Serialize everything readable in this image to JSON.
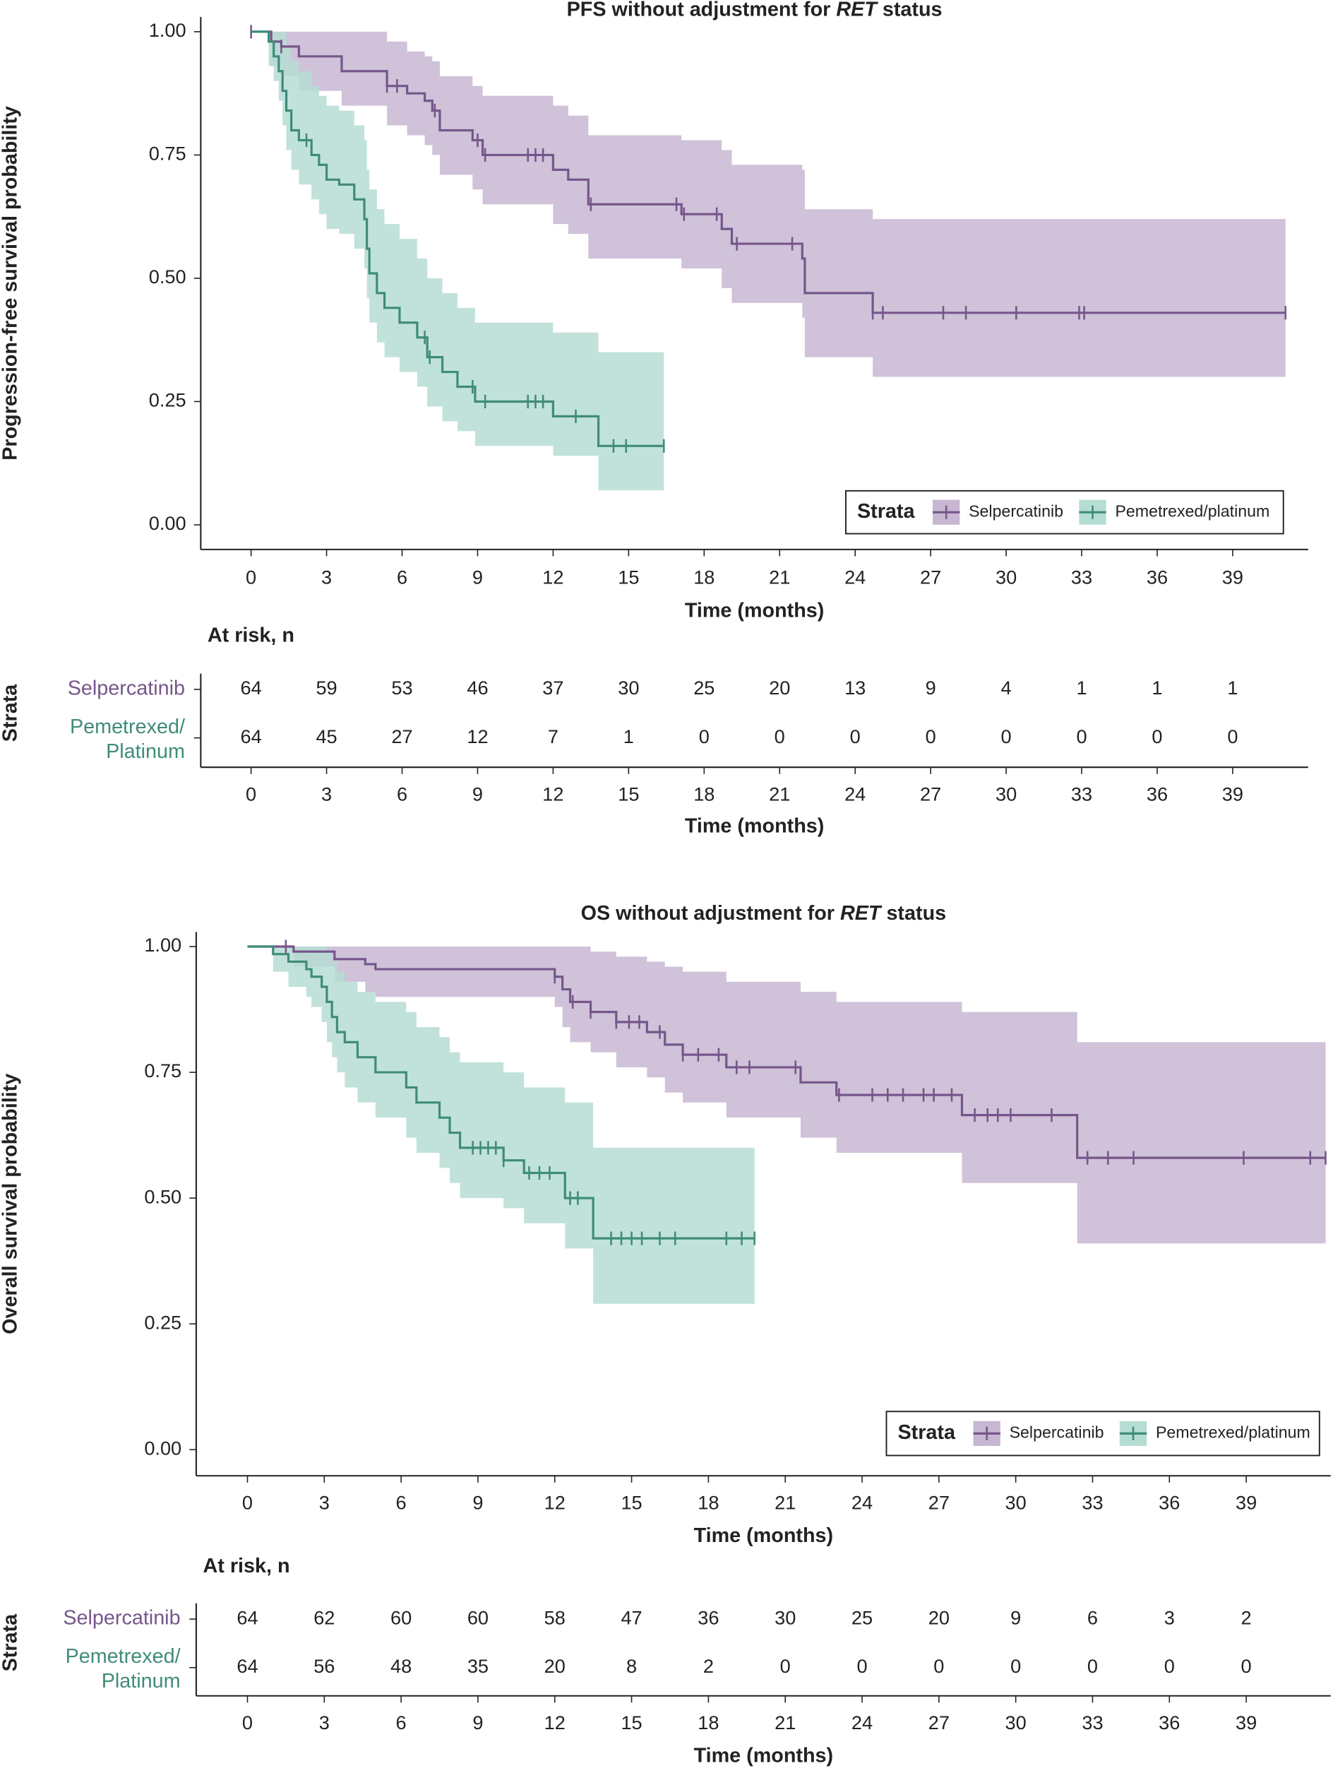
{
  "chart_data": [
    {
      "type": "step",
      "title": [
        "PFS without adjustment for ",
        "RET",
        " status"
      ],
      "ylabel": "Progression-free survival probability",
      "xlabel": "Time (months)",
      "xlim": [
        -2,
        42
      ],
      "ylim": [
        -0.05,
        1.03
      ],
      "xticks": [
        0,
        3,
        6,
        9,
        12,
        15,
        18,
        21,
        24,
        27,
        30,
        33,
        36,
        39
      ],
      "yticks": [
        {
          "value": 0,
          "label": "0.00"
        },
        {
          "value": 0.25,
          "label": "0.25"
        },
        {
          "value": 0.5,
          "label": "0.50"
        },
        {
          "value": 0.75,
          "label": "0.75"
        },
        {
          "value": 1,
          "label": "1.00"
        }
      ],
      "legend": {
        "title": "Strata",
        "position": "lower right"
      },
      "series": [
        {
          "name": "Selpercatinib",
          "color": "#76568a",
          "band_color": "#c7b7d2",
          "x": [
            0,
            0.8,
            1.2,
            1.9,
            3.6,
            5.4,
            6.2,
            6.9,
            7.2,
            7.5,
            8.8,
            9.2,
            12.0,
            12.6,
            13.4,
            17.1,
            18.7,
            19.1,
            21.9,
            22.0,
            24.7,
            41.1
          ],
          "values": [
            1.0,
            0.98,
            0.97,
            0.95,
            0.92,
            0.89,
            0.875,
            0.86,
            0.84,
            0.8,
            0.78,
            0.75,
            0.72,
            0.7,
            0.65,
            0.63,
            0.6,
            0.57,
            0.54,
            0.47,
            0.43,
            0.43
          ],
          "upper": [
            1.0,
            1.0,
            1.0,
            1.0,
            1.0,
            0.98,
            0.96,
            0.95,
            0.94,
            0.91,
            0.89,
            0.87,
            0.85,
            0.83,
            0.79,
            0.78,
            0.76,
            0.73,
            0.72,
            0.64,
            0.62,
            0.62
          ],
          "lower": [
            1.0,
            0.93,
            0.91,
            0.88,
            0.85,
            0.81,
            0.79,
            0.77,
            0.75,
            0.71,
            0.68,
            0.65,
            0.61,
            0.59,
            0.54,
            0.52,
            0.48,
            0.45,
            0.42,
            0.34,
            0.3,
            0.3
          ],
          "censor_x": [
            0,
            1.2,
            5.4,
            5.8,
            7.3,
            9.0,
            9.3,
            11.0,
            11.3,
            11.6,
            13.5,
            16.9,
            17.2,
            18.5,
            19.3,
            21.5,
            24.7,
            25.1,
            27.5,
            28.4,
            30.4,
            32.9,
            33.1,
            41.1
          ],
          "censor_values": [
            1,
            0.97,
            0.89,
            0.89,
            0.84,
            0.78,
            0.75,
            0.75,
            0.75,
            0.75,
            0.65,
            0.65,
            0.63,
            0.63,
            0.57,
            0.57,
            0.43,
            0.43,
            0.43,
            0.43,
            0.43,
            0.43,
            0.43,
            0.43
          ]
        },
        {
          "name": "Pemetrexed/platinum",
          "color": "#3f8c79",
          "band_color": "#b6ddd3",
          "x": [
            0,
            0.7,
            0.9,
            1.1,
            1.25,
            1.4,
            1.6,
            1.9,
            2.4,
            2.7,
            3.0,
            3.5,
            4.1,
            4.5,
            4.6,
            4.7,
            5.0,
            5.3,
            5.9,
            6.6,
            7.0,
            7.6,
            8.2,
            8.9,
            12.0,
            13.8,
            16.4
          ],
          "values": [
            1.0,
            0.98,
            0.95,
            0.92,
            0.88,
            0.84,
            0.8,
            0.78,
            0.75,
            0.73,
            0.7,
            0.69,
            0.66,
            0.62,
            0.56,
            0.51,
            0.47,
            0.44,
            0.41,
            0.38,
            0.34,
            0.31,
            0.28,
            0.25,
            0.22,
            0.16,
            0.16
          ],
          "upper": [
            1,
            1,
            1,
            1,
            1,
            0.97,
            0.94,
            0.92,
            0.89,
            0.87,
            0.85,
            0.84,
            0.81,
            0.78,
            0.72,
            0.68,
            0.64,
            0.61,
            0.58,
            0.54,
            0.5,
            0.47,
            0.44,
            0.41,
            0.39,
            0.35,
            0.35
          ],
          "lower": [
            1,
            0.93,
            0.9,
            0.86,
            0.81,
            0.76,
            0.72,
            0.69,
            0.66,
            0.63,
            0.6,
            0.59,
            0.56,
            0.52,
            0.46,
            0.41,
            0.37,
            0.34,
            0.31,
            0.28,
            0.24,
            0.21,
            0.19,
            0.16,
            0.14,
            0.07,
            0.07
          ],
          "censor_x": [
            2.2,
            6.9,
            7.1,
            8.8,
            9.3,
            11.0,
            11.3,
            11.6,
            12.9,
            14.4,
            14.9,
            16.4
          ],
          "censor_values": [
            0.78,
            0.38,
            0.34,
            0.28,
            0.25,
            0.25,
            0.25,
            0.25,
            0.22,
            0.16,
            0.16,
            0.16
          ]
        }
      ],
      "risk_table": {
        "title": "At risk, n",
        "ylabel": "Strata",
        "xlabel": "Time (months)",
        "xticks": [
          0,
          3,
          6,
          9,
          12,
          15,
          18,
          21,
          24,
          27,
          30,
          33,
          36,
          39
        ],
        "row_labels": [
          [
            "Selpercatinib"
          ],
          [
            "Pemetrexed/",
            "Platinum"
          ]
        ],
        "rows": [
          [
            64,
            59,
            53,
            46,
            37,
            30,
            25,
            20,
            13,
            9,
            4,
            1,
            1,
            1
          ],
          [
            64,
            45,
            27,
            12,
            7,
            1,
            0,
            0,
            0,
            0,
            0,
            0,
            0,
            0
          ]
        ]
      }
    },
    {
      "type": "step",
      "title": [
        "OS without adjustment for ",
        "RET",
        " status"
      ],
      "ylabel": "Overall survival probability",
      "xlabel": "Time (months)",
      "xlim": [
        -2,
        42.3
      ],
      "ylim": [
        -0.052,
        1.029
      ],
      "xticks": [
        0,
        3,
        6,
        9,
        12,
        15,
        18,
        21,
        24,
        27,
        30,
        33,
        36,
        39
      ],
      "yticks": [
        {
          "value": 0,
          "label": "0.00"
        },
        {
          "value": 0.25,
          "label": "0.25"
        },
        {
          "value": 0.5,
          "label": "0.50"
        },
        {
          "value": 0.75,
          "label": "0.75"
        },
        {
          "value": 1,
          "label": "1.00"
        }
      ],
      "legend": {
        "title": "Strata",
        "position": "lower right"
      },
      "series": [
        {
          "name": "Selpercatinib",
          "color": "#76568a",
          "band_color": "#c7b7d2",
          "x": [
            0,
            1.8,
            3.4,
            4.6,
            5.0,
            12.0,
            12.3,
            12.6,
            13.4,
            14.4,
            15.6,
            16.3,
            17.0,
            18.7,
            21.6,
            23.0,
            27.9,
            32.4,
            42.1
          ],
          "values": [
            1,
            0.99,
            0.975,
            0.965,
            0.955,
            0.94,
            0.915,
            0.89,
            0.87,
            0.85,
            0.83,
            0.805,
            0.785,
            0.76,
            0.73,
            0.705,
            0.665,
            0.58,
            0.58
          ],
          "upper": [
            1,
            1,
            1,
            1,
            1,
            1,
            1,
            1,
            0.99,
            0.98,
            0.97,
            0.96,
            0.95,
            0.93,
            0.91,
            0.89,
            0.87,
            0.81,
            0.81
          ],
          "lower": [
            1,
            0.96,
            0.93,
            0.91,
            0.9,
            0.88,
            0.84,
            0.81,
            0.79,
            0.76,
            0.74,
            0.71,
            0.69,
            0.66,
            0.62,
            0.59,
            0.53,
            0.41,
            0.41
          ],
          "censor_x": [
            1.5,
            12.0,
            12.7,
            13.4,
            14.4,
            14.9,
            15.3,
            16.1,
            17.0,
            17.6,
            18.4,
            19.1,
            19.6,
            21.4,
            23.1,
            24.4,
            25.0,
            25.6,
            26.4,
            26.8,
            27.5,
            28.4,
            28.9,
            29.3,
            29.8,
            31.4,
            32.8,
            33.6,
            34.6,
            38.9,
            41.5,
            42.1
          ],
          "censor_values": [
            1,
            0.94,
            0.89,
            0.87,
            0.85,
            0.85,
            0.85,
            0.83,
            0.785,
            0.785,
            0.785,
            0.76,
            0.76,
            0.76,
            0.705,
            0.705,
            0.705,
            0.705,
            0.705,
            0.705,
            0.705,
            0.665,
            0.665,
            0.665,
            0.665,
            0.665,
            0.58,
            0.58,
            0.58,
            0.58,
            0.58,
            0.58
          ]
        },
        {
          "name": "Pemetrexed/platinum",
          "color": "#3f8c79",
          "band_color": "#b6ddd3",
          "x": [
            0,
            1.0,
            1.6,
            2.3,
            2.5,
            2.9,
            3.1,
            3.3,
            3.5,
            3.8,
            4.3,
            5.0,
            6.2,
            6.6,
            7.5,
            7.9,
            8.3,
            10.0,
            10.8,
            12.4,
            13.5,
            19.8
          ],
          "values": [
            1,
            0.985,
            0.97,
            0.955,
            0.94,
            0.92,
            0.89,
            0.86,
            0.83,
            0.81,
            0.78,
            0.75,
            0.72,
            0.69,
            0.66,
            0.63,
            0.6,
            0.575,
            0.55,
            0.5,
            0.42,
            0.42
          ],
          "upper": [
            1,
            1,
            1,
            1,
            1,
            1,
            0.99,
            0.97,
            0.95,
            0.93,
            0.91,
            0.89,
            0.87,
            0.84,
            0.82,
            0.79,
            0.77,
            0.75,
            0.72,
            0.69,
            0.6,
            0.6
          ],
          "lower": [
            1,
            0.95,
            0.92,
            0.9,
            0.88,
            0.85,
            0.81,
            0.78,
            0.75,
            0.72,
            0.69,
            0.66,
            0.62,
            0.59,
            0.56,
            0.53,
            0.5,
            0.48,
            0.45,
            0.4,
            0.29,
            0.29
          ],
          "censor_x": [
            8.8,
            9.1,
            9.4,
            9.7,
            10.0,
            11.0,
            11.4,
            11.8,
            12.6,
            12.9,
            14.2,
            14.6,
            15.0,
            15.4,
            16.1,
            16.7,
            18.7,
            19.3,
            19.8
          ],
          "censor_values": [
            0.6,
            0.6,
            0.6,
            0.6,
            0.575,
            0.55,
            0.55,
            0.55,
            0.5,
            0.5,
            0.42,
            0.42,
            0.42,
            0.42,
            0.42,
            0.42,
            0.42,
            0.42,
            0.42
          ]
        }
      ],
      "risk_table": {
        "title": "At risk, n",
        "ylabel": "Strata",
        "xlabel": "Time (months)",
        "xticks": [
          0,
          3,
          6,
          9,
          12,
          15,
          18,
          21,
          24,
          27,
          30,
          33,
          36,
          39
        ],
        "row_labels": [
          [
            "Selpercatinib"
          ],
          [
            "Pemetrexed/",
            "Platinum"
          ]
        ],
        "rows": [
          [
            64,
            62,
            60,
            60,
            58,
            47,
            36,
            30,
            25,
            20,
            9,
            6,
            3,
            2
          ],
          [
            64,
            56,
            48,
            35,
            20,
            8,
            2,
            0,
            0,
            0,
            0,
            0,
            0,
            0
          ]
        ]
      }
    }
  ]
}
